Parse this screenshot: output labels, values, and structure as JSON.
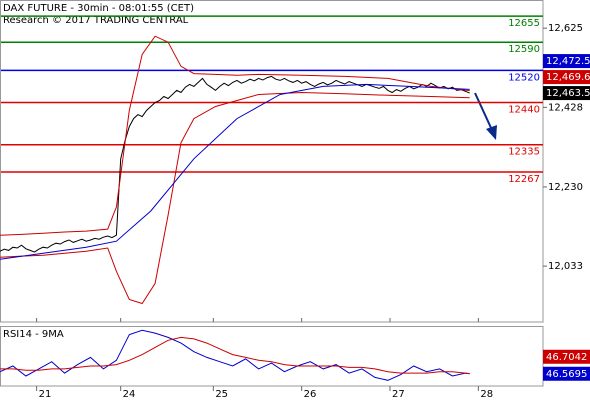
{
  "chart_data": [
    {
      "type": "line",
      "title": "DAX FUTURE - 30min - 08:01:55 (CET)",
      "subtitle": "Research © 2017 TRADING CENTRAL",
      "xlim": [
        0,
        126
      ],
      "ylim": [
        11894,
        12695
      ],
      "yticks": [
        {
          "value": 12625,
          "label": "12,625"
        },
        {
          "value": 12428,
          "label": "12,428"
        },
        {
          "value": 12230,
          "label": "12,230"
        },
        {
          "value": 12033,
          "label": "12,033"
        }
      ],
      "levels": [
        {
          "value": 12655,
          "color": "#008000"
        },
        {
          "value": 12590,
          "color": "#008000"
        },
        {
          "value": 12520,
          "color": "#0000ee"
        },
        {
          "value": 12440,
          "color": "#e00000"
        },
        {
          "value": 12335,
          "color": "#e00000"
        },
        {
          "value": 12267,
          "color": "#e00000"
        }
      ],
      "series": [
        {
          "color": "#000000",
          "x": [
            0,
            1,
            2,
            3,
            4,
            5,
            6,
            7,
            8,
            9,
            10,
            11,
            12,
            13,
            14,
            15,
            16,
            17,
            18,
            19,
            20,
            21,
            22,
            23,
            24,
            25,
            26,
            27,
            28,
            29,
            30,
            31,
            32,
            33,
            34,
            35,
            36,
            37,
            38,
            39,
            40,
            41,
            42,
            43,
            44,
            45,
            46,
            47,
            48,
            49,
            50,
            51,
            52,
            53,
            54,
            55,
            56,
            57,
            58,
            59,
            60,
            61,
            62,
            63,
            64,
            65,
            66,
            67,
            68,
            69,
            70,
            71,
            72,
            73,
            74,
            75,
            76,
            77,
            78,
            79,
            80,
            81,
            82,
            83,
            84,
            85,
            86,
            87,
            88,
            89,
            90,
            91,
            92,
            93,
            94,
            95,
            96,
            97,
            98,
            99,
            100,
            101,
            102,
            103,
            104,
            105,
            106,
            107,
            108,
            109
          ],
          "values": [
            12070,
            12075,
            12072,
            12080,
            12078,
            12085,
            12076,
            12072,
            12068,
            12075,
            12080,
            12078,
            12085,
            12090,
            12088,
            12094,
            12098,
            12092,
            12096,
            12100,
            12095,
            12098,
            12102,
            12100,
            12105,
            12108,
            12104,
            12110,
            12300,
            12345,
            12380,
            12400,
            12410,
            12405,
            12420,
            12430,
            12440,
            12445,
            12455,
            12450,
            12460,
            12470,
            12465,
            12478,
            12485,
            12480,
            12490,
            12500,
            12485,
            12478,
            12470,
            12480,
            12488,
            12482,
            12490,
            12495,
            12488,
            12492,
            12498,
            12494,
            12500,
            12496,
            12502,
            12505,
            12498,
            12495,
            12500,
            12494,
            12490,
            12495,
            12488,
            12492,
            12485,
            12480,
            12486,
            12490,
            12484,
            12488,
            12495,
            12490,
            12486,
            12492,
            12488,
            12484,
            12480,
            12485,
            12482,
            12478,
            12475,
            12480,
            12470,
            12465,
            12472,
            12468,
            12475,
            12480,
            12474,
            12478,
            12485,
            12480,
            12488,
            12482,
            12476,
            12480,
            12474,
            12478,
            12470,
            12472,
            12468,
            12463.5
          ]
        },
        {
          "color": "#cc0000",
          "x": [
            0,
            5,
            10,
            15,
            20,
            25,
            27,
            30,
            33,
            36,
            39,
            42,
            45,
            50,
            55,
            60,
            70,
            80,
            90,
            100,
            109
          ],
          "values": [
            12110,
            12112,
            12115,
            12118,
            12120,
            12125,
            12180,
            12420,
            12560,
            12605,
            12590,
            12530,
            12512,
            12510,
            12508,
            12510,
            12508,
            12505,
            12500,
            12480,
            12469.6
          ]
        },
        {
          "color": "#cc0000",
          "x": [
            0,
            5,
            10,
            15,
            20,
            25,
            27,
            30,
            33,
            36,
            39,
            42,
            45,
            50,
            55,
            60,
            70,
            80,
            90,
            100,
            109
          ],
          "values": [
            12055,
            12058,
            12060,
            12065,
            12070,
            12078,
            12020,
            11950,
            11940,
            11990,
            12160,
            12340,
            12400,
            12430,
            12445,
            12460,
            12465,
            12462,
            12458,
            12455,
            12452
          ]
        },
        {
          "color": "#0000cc",
          "x": [
            0,
            10,
            20,
            27,
            35,
            45,
            55,
            65,
            75,
            85,
            95,
            109
          ],
          "values": [
            12050,
            12065,
            12080,
            12095,
            12170,
            12300,
            12400,
            12460,
            12480,
            12485,
            12480,
            12472.5
          ]
        }
      ],
      "markers": [
        {
          "value": 12472.5,
          "label": "12,472.5",
          "color": "#0000cc"
        },
        {
          "value": 12469.6,
          "label": "12,469.6",
          "color": "#cc0000"
        },
        {
          "value": 12463.5,
          "label": "12,463.5",
          "color": "#000000"
        }
      ]
    },
    {
      "type": "line",
      "title": "RSI14 - 9MA",
      "xlim": [
        0,
        126
      ],
      "ylim": [
        38,
        80
      ],
      "xticks": [
        {
          "value": 8.5,
          "label": "21"
        },
        {
          "value": 28,
          "label": "24"
        },
        {
          "value": 49.5,
          "label": "25"
        },
        {
          "value": 70,
          "label": "26"
        },
        {
          "value": 90.5,
          "label": "27"
        },
        {
          "value": 111,
          "label": "28"
        }
      ],
      "series": [
        {
          "color": "#0000cc",
          "x": [
            0,
            3,
            6,
            9,
            12,
            15,
            18,
            21,
            24,
            27,
            30,
            33,
            36,
            39,
            42,
            45,
            48,
            51,
            54,
            57,
            60,
            63,
            66,
            69,
            72,
            75,
            78,
            81,
            84,
            87,
            90,
            93,
            96,
            99,
            102,
            105,
            108,
            109
          ],
          "values": [
            48,
            52,
            45,
            50,
            55,
            47,
            53,
            58,
            50,
            56,
            74,
            77,
            75,
            72,
            68,
            62,
            58,
            55,
            52,
            57,
            50,
            54,
            48,
            52,
            55,
            50,
            53,
            47,
            50,
            44,
            42,
            46,
            52,
            48,
            50,
            45,
            47,
            46.5695
          ]
        },
        {
          "color": "#cc0000",
          "x": [
            0,
            3,
            6,
            9,
            12,
            15,
            18,
            21,
            24,
            27,
            30,
            33,
            36,
            39,
            42,
            45,
            48,
            51,
            54,
            57,
            60,
            63,
            66,
            69,
            72,
            75,
            78,
            81,
            84,
            87,
            90,
            93,
            96,
            99,
            102,
            105,
            108,
            109
          ],
          "values": [
            50,
            50,
            49,
            49,
            50,
            50,
            51,
            52,
            52,
            53,
            56,
            60,
            65,
            70,
            72,
            71,
            68,
            64,
            60,
            58,
            56,
            55,
            53,
            52,
            52,
            52,
            52,
            51,
            51,
            50,
            48,
            47,
            47,
            47,
            48,
            48,
            47,
            46.7042
          ]
        }
      ],
      "markers": [
        {
          "value": 46.7042,
          "color": "#cc0000"
        },
        {
          "value": 46.5695,
          "color": "#0000cc"
        }
      ]
    }
  ]
}
